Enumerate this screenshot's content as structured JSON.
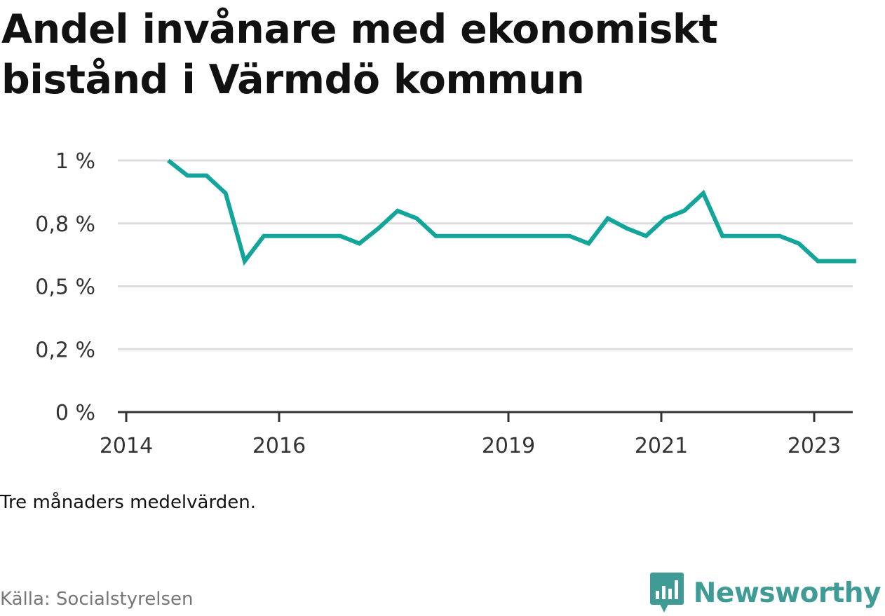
{
  "title": "Andel invånare med ekonomiskt bistånd i Värmdö kommun",
  "note": "Tre månaders medelvärden.",
  "source": "Källa: Socialstyrelsen",
  "brand": {
    "name": "Newsworthy",
    "color": "#3e9b95",
    "icon": "bar-chart-speech-bubble-icon"
  },
  "chart_data": {
    "type": "line",
    "title": "Andel invånare med ekonomiskt bistånd i Värmdö kommun",
    "xlabel": "",
    "ylabel": "",
    "x_ticks": [
      "2014",
      "2016",
      "2019",
      "2021",
      "2023"
    ],
    "y_ticks": [
      "0 %",
      "0,2 %",
      "0,5 %",
      "0,8 %",
      "1 %"
    ],
    "ylim": [
      0,
      1
    ],
    "grid": true,
    "color": "#12a599",
    "series": [
      {
        "x": [
          "2014-04",
          "2014-07",
          "2014-10",
          "2015-01",
          "2015-04",
          "2015-07",
          "2015-10",
          "2016-01",
          "2016-04",
          "2016-07",
          "2016-10",
          "2017-01",
          "2017-04",
          "2017-07",
          "2017-10",
          "2018-01",
          "2018-04",
          "2018-07",
          "2018-10",
          "2019-01",
          "2019-04",
          "2019-07",
          "2019-10",
          "2020-01",
          "2020-04",
          "2020-07",
          "2020-10",
          "2021-01",
          "2021-04",
          "2021-07",
          "2021-10",
          "2022-01",
          "2022-04",
          "2022-07",
          "2022-10",
          "2023-01",
          "2023-04"
        ],
        "values": [
          1.0,
          0.94,
          0.94,
          0.87,
          0.6,
          0.7,
          0.7,
          0.7,
          0.7,
          0.7,
          0.67,
          0.73,
          0.8,
          0.77,
          0.7,
          0.7,
          0.7,
          0.7,
          0.7,
          0.7,
          0.7,
          0.7,
          0.67,
          0.77,
          0.73,
          0.7,
          0.77,
          0.8,
          0.87,
          0.7,
          0.7,
          0.7,
          0.7,
          0.67,
          0.6,
          0.6,
          0.6
        ]
      }
    ]
  }
}
